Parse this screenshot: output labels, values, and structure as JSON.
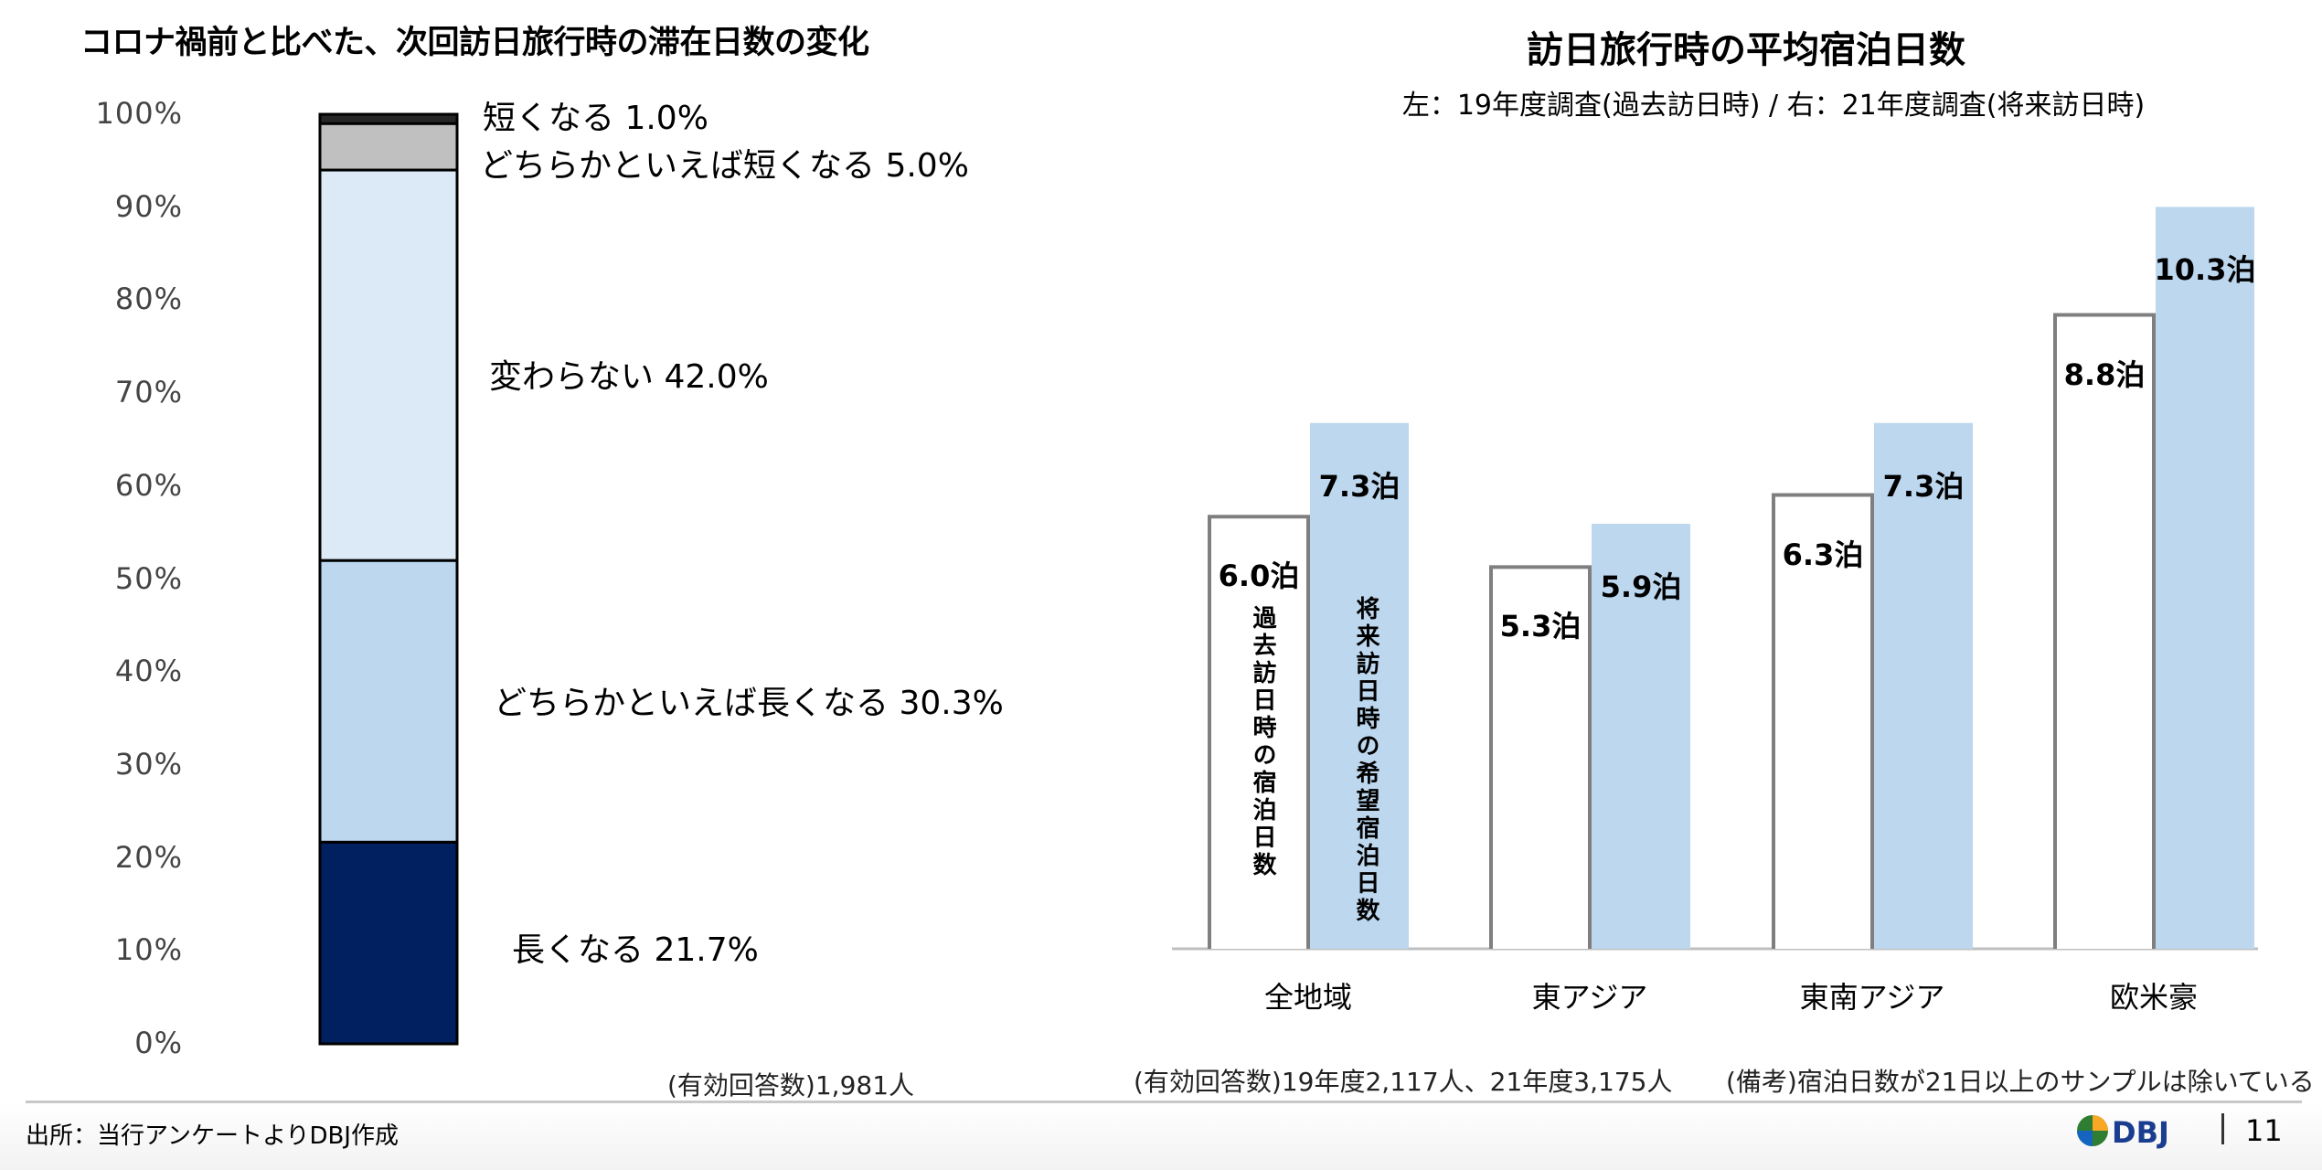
{
  "left": {
    "title": "コロナ禍前と比べた、次回訪日旅行時の滞在日数の変化",
    "note": "(有効回答数)1,981人"
  },
  "right": {
    "title": "訪日旅行時の平均宿泊日数",
    "subtitle": "左：19年度調査(過去訪日時)  /  右：21年度調査(将来訪日時)",
    "note_respondents": "(有効回答数)19年度2,117人、21年度3,175人",
    "note_remarks": "(備考)宿泊日数が21日以上のサンプルは除いている",
    "legend_past": "過去訪日時の宿泊日数",
    "legend_future": "将来訪日時の希望宿泊日数"
  },
  "footer": {
    "source": "出所：当行アンケートよりDBJ作成",
    "logo": "DBJ",
    "page": "11"
  },
  "colors": {
    "nagaku": "#002060",
    "dochiraka_nagaku": "#bdd7ee",
    "kawaranai": "#dce9f7",
    "dochiraka_mijikaku": "#c0c0c0",
    "mijikaku": "#262626",
    "bar_past_fill": "#ffffff",
    "bar_past_stroke": "#7f7f7f",
    "bar_future": "#bdd7ee"
  },
  "chart_data": [
    {
      "type": "bar",
      "stacked": true,
      "title": "コロナ禍前と比べた、次回訪日旅行時の滞在日数の変化",
      "ylim": [
        0,
        100
      ],
      "yticks": [
        "0%",
        "10%",
        "20%",
        "30%",
        "40%",
        "50%",
        "60%",
        "70%",
        "80%",
        "90%",
        "100%"
      ],
      "series": [
        {
          "name": "長くなる",
          "value": 21.7,
          "label": "長くなる 21.7%"
        },
        {
          "name": "どちらかといえば長くなる",
          "value": 30.3,
          "label": "どちらかといえば長くなる 30.3%"
        },
        {
          "name": "変わらない",
          "value": 42.0,
          "label": "変わらない 42.0%"
        },
        {
          "name": "どちらかといえば短くなる",
          "value": 5.0,
          "label": "どちらかといえば短くなる 5.0%"
        },
        {
          "name": "短くなる",
          "value": 1.0,
          "label": "短くなる 1.0%"
        }
      ]
    },
    {
      "type": "bar",
      "title": "訪日旅行時の平均宿泊日数",
      "categories": [
        "全地域",
        "東アジア",
        "東南アジア",
        "欧米豪"
      ],
      "series": [
        {
          "name": "19年度調査(過去訪日時)",
          "values": [
            6.0,
            5.3,
            6.3,
            8.8
          ],
          "labels": [
            "6.0泊",
            "5.3泊",
            "6.3泊",
            "8.8泊"
          ]
        },
        {
          "name": "21年度調査(将来訪日時)",
          "values": [
            7.3,
            5.9,
            7.3,
            10.3
          ],
          "labels": [
            "7.3泊",
            "5.9泊",
            "7.3泊",
            "10.3泊"
          ]
        }
      ]
    }
  ]
}
